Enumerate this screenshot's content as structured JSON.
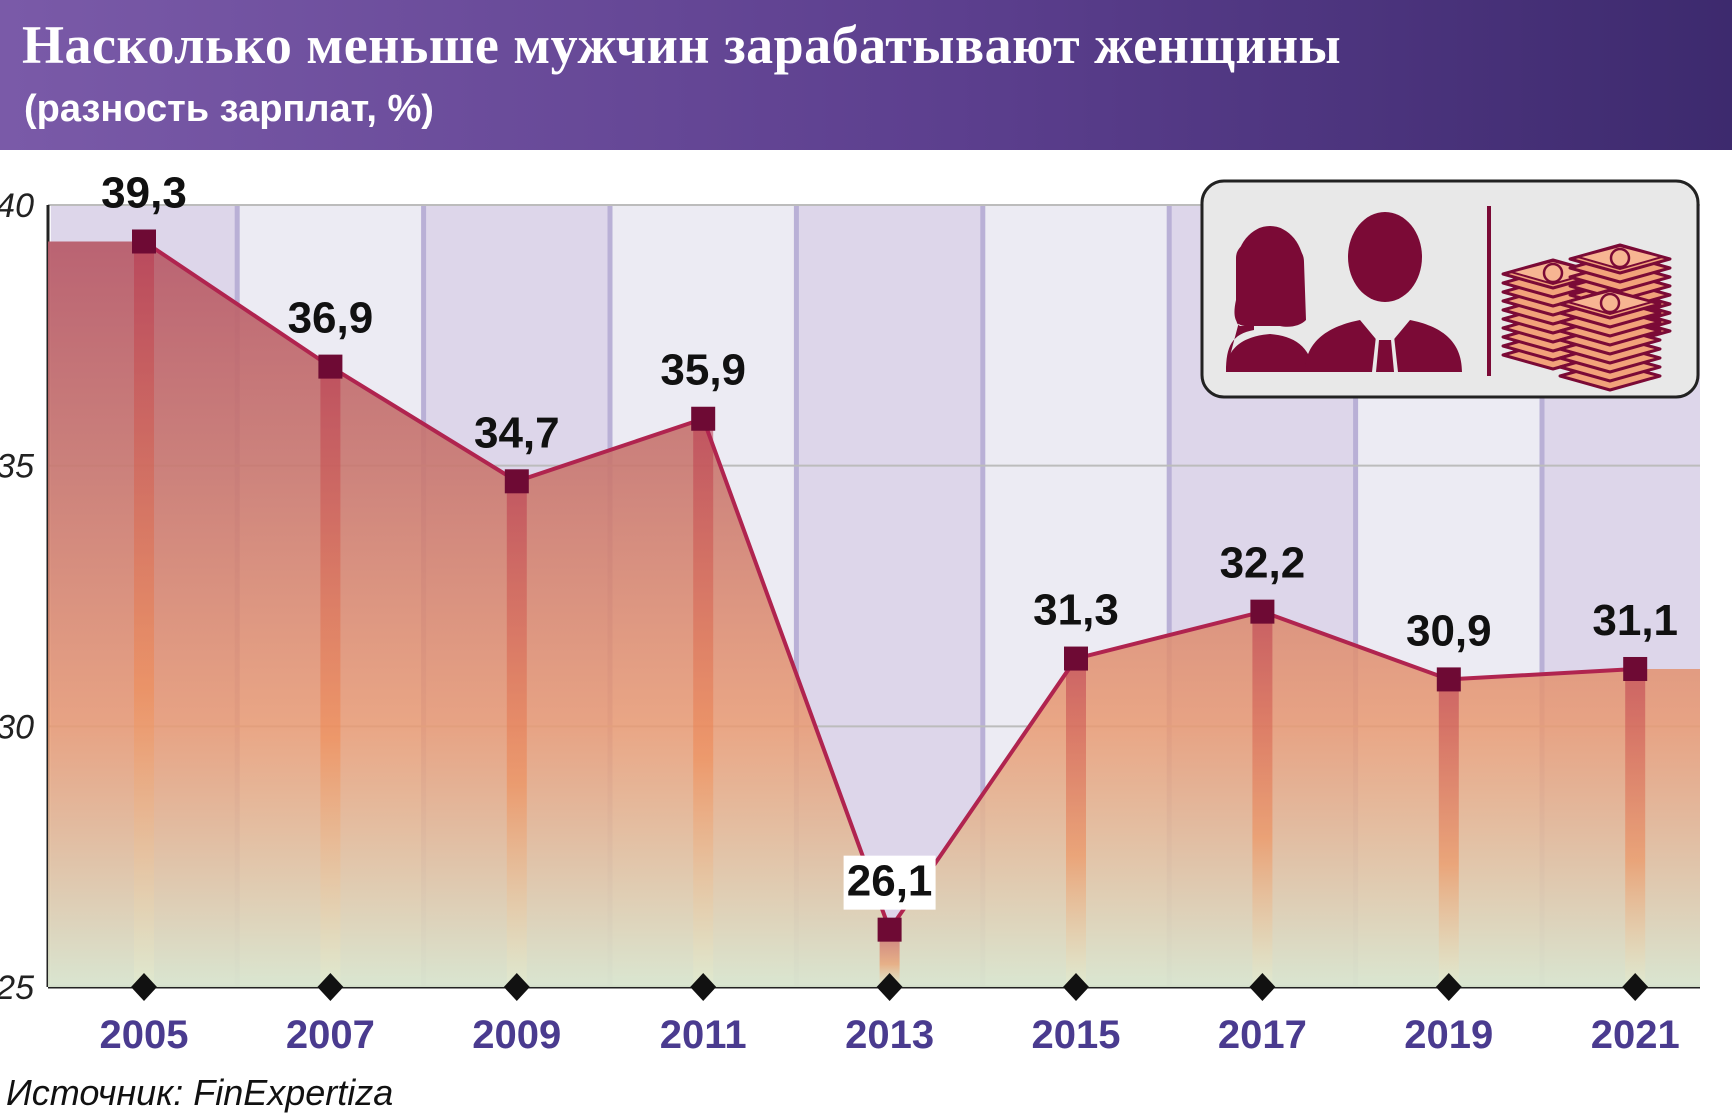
{
  "header": {
    "title": "Насколько меньше мужчин зарабатывают женщины",
    "subtitle": "(разность зарплат, %)"
  },
  "source": "Источник: FinExpertiza",
  "legend_icon": {
    "left": "women-men-silhouettes-icon",
    "right": "ruble-money-stacks-icon"
  },
  "colors": {
    "header_start": "#7a5aa8",
    "header_end": "#3d2a6e",
    "line": "#b0244f",
    "marker": "#6e0a34",
    "area_top": "#b85d6c",
    "area_mid": "#e99a72",
    "area_bottom": "#d9e6cf",
    "band_dark": "#ddd6ea",
    "band_light": "#ecebf3",
    "tick_label": "#4a3b8f"
  },
  "chart_data": {
    "type": "area",
    "title": "Насколько меньше мужчин зарабатывают женщины",
    "subtitle": "(разность зарплат, %)",
    "xlabel": "",
    "ylabel": "",
    "categories": [
      "2005",
      "2007",
      "2009",
      "2011",
      "2013",
      "2015",
      "2017",
      "2019",
      "2021"
    ],
    "values": [
      39.3,
      36.9,
      34.7,
      35.9,
      26.1,
      31.3,
      32.2,
      30.9,
      31.1
    ],
    "value_labels": [
      "39,3",
      "36,9",
      "34,7",
      "35,9",
      "26,1",
      "31,3",
      "32,2",
      "30,9",
      "31,1"
    ],
    "ylim": [
      25,
      40
    ],
    "yticks": [
      25,
      30,
      35,
      40
    ],
    "grid": true,
    "legend": "none"
  }
}
